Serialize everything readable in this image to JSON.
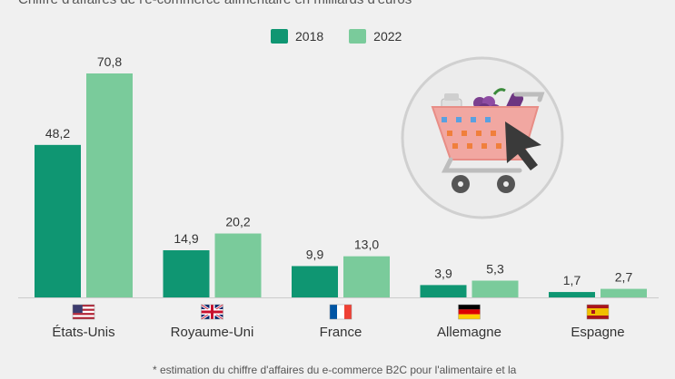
{
  "subtitle": "Chiffre d'affaires de l'e-commerce alimentaire en milliards d'euros",
  "footnote": "* estimation du chiffre d'affaires du e-commerce B2C pour l'alimentaire et la",
  "colors": {
    "series_2018": "#0f9672",
    "series_2022": "#7acb9b",
    "background": "#f0f0f0"
  },
  "icons": {
    "illustration": "shopping-cart-icon",
    "flags": [
      "us-flag-icon",
      "uk-flag-icon",
      "france-flag-icon",
      "germany-flag-icon",
      "spain-flag-icon"
    ]
  },
  "chart_data": {
    "type": "bar",
    "categories": [
      "États-Unis",
      "Royaume-Uni",
      "France",
      "Allemagne",
      "Espagne"
    ],
    "series": [
      {
        "name": "2018",
        "values": [
          48.2,
          14.9,
          9.9,
          3.9,
          1.7
        ],
        "labels": [
          "48,2",
          "14,9",
          "9,9",
          "3,9",
          "1,7"
        ]
      },
      {
        "name": "2022",
        "values": [
          70.8,
          20.2,
          13.0,
          5.3,
          2.7
        ],
        "labels": [
          "70,8",
          "20,2",
          "13,0",
          "5,3",
          "2,7"
        ]
      }
    ],
    "ylim": [
      0,
      70.8
    ],
    "grid": false,
    "legend": "top-center"
  }
}
